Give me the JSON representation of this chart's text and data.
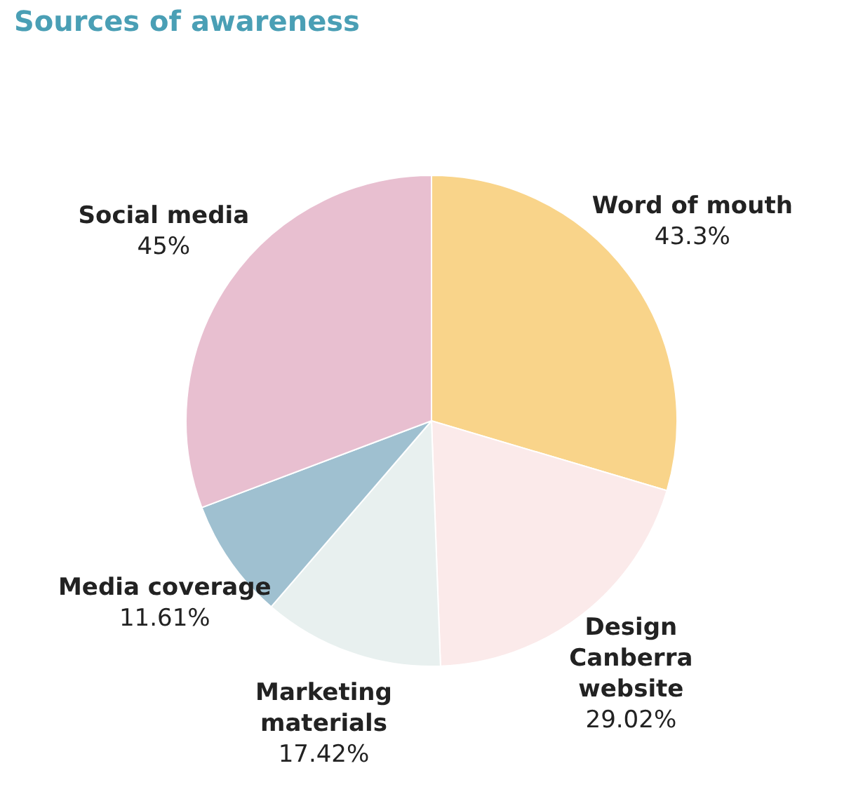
{
  "chart_data": {
    "type": "pie",
    "title": "Sources of awareness",
    "categories": [
      "Word of mouth",
      "Design Canberra website",
      "Marketing materials",
      "Media coverage",
      "Social media"
    ],
    "values": [
      43.3,
      29.02,
      17.42,
      11.61,
      45
    ],
    "value_labels": [
      "43.3%",
      "29.02%",
      "17.42%",
      "11.61%",
      "45%"
    ],
    "colors": [
      "#f9d48a",
      "#fbeaea",
      "#e8f0ef",
      "#9fc0d0",
      "#e8bfd0"
    ],
    "legend": false
  }
}
